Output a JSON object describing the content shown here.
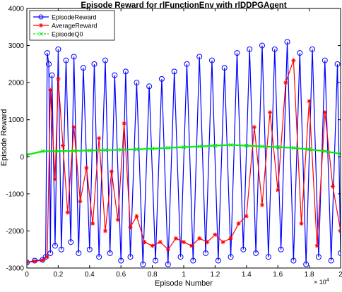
{
  "chart_data": {
    "type": "line",
    "title": "Episode Reward for rlFunctionEnv with rlDDPGAgent",
    "xlabel": "Episode Number",
    "ylabel": "Episode Reward",
    "xlim": [
      0,
      20000
    ],
    "ylim": [
      -3000,
      4000
    ],
    "x_ticks": [
      0,
      2000,
      4000,
      6000,
      8000,
      10000,
      12000,
      14000,
      16000,
      18000,
      20000
    ],
    "x_tick_labels": [
      "0",
      "0.2",
      "0.4",
      "0.6",
      "0.8",
      "1",
      "1.2",
      "1.4",
      "1.6",
      "1.8",
      "2"
    ],
    "x_exponent_label": "× 10",
    "x_exponent_power": "4",
    "y_ticks": [
      -3000,
      -2000,
      -1000,
      0,
      1000,
      2000,
      3000,
      4000
    ],
    "y_tick_labels": [
      "-3000",
      "-2000",
      "-1000",
      "0",
      "1000",
      "2000",
      "3000",
      "4000"
    ],
    "grid": false,
    "legend_position": "top-left",
    "series": [
      {
        "name": "EpisodeReward",
        "color": "#0000ff",
        "marker": "circle",
        "x": [
          0,
          500,
          1000,
          1200,
          1300,
          1400,
          1500,
          1600,
          1800,
          2000,
          2200,
          2500,
          2800,
          3000,
          3300,
          3600,
          4000,
          4300,
          4600,
          5000,
          5300,
          5600,
          6000,
          6300,
          6600,
          7000,
          7400,
          7800,
          8200,
          8600,
          9000,
          9400,
          9800,
          10200,
          10600,
          11000,
          11400,
          11800,
          12200,
          12600,
          13000,
          13400,
          13800,
          14200,
          14600,
          15000,
          15400,
          15800,
          16200,
          16600,
          17000,
          17400,
          17800,
          18200,
          18600,
          19000,
          19400,
          19800,
          20000
        ],
        "y": [
          -2850,
          -2800,
          -2780,
          -2700,
          2800,
          2500,
          -2600,
          2200,
          -2400,
          2900,
          -2500,
          2600,
          -2300,
          2700,
          -2600,
          2400,
          -2500,
          2500,
          -2700,
          2600,
          -2600,
          2200,
          -2800,
          2300,
          -2700,
          2000,
          -2900,
          1900,
          -2800,
          2100,
          -2900,
          2300,
          -2700,
          2500,
          -2800,
          2700,
          -2600,
          2600,
          -2800,
          2400,
          -2700,
          2800,
          -2500,
          2900,
          -2600,
          3000,
          -2700,
          2900,
          -2500,
          3100,
          -2800,
          2800,
          -2900,
          2900,
          -2700,
          2600,
          -2800,
          2500,
          -2600
        ]
      },
      {
        "name": "AverageReward",
        "color": "#ff0000",
        "marker": "asterisk",
        "x": [
          0,
          500,
          1000,
          1300,
          1500,
          1800,
          2000,
          2300,
          2600,
          3000,
          3400,
          3800,
          4200,
          4600,
          5000,
          5400,
          5800,
          6200,
          6600,
          7000,
          7500,
          8000,
          8500,
          9000,
          9500,
          10000,
          10500,
          11000,
          11500,
          12000,
          12500,
          13000,
          13500,
          14000,
          14500,
          15000,
          15500,
          16000,
          16500,
          17000,
          17500,
          18000,
          18500,
          19000,
          19500,
          20000
        ],
        "y": [
          -2850,
          -2820,
          -2790,
          -2700,
          1800,
          -600,
          2100,
          300,
          -1500,
          800,
          -1200,
          -300,
          -1800,
          500,
          -2000,
          -400,
          -1700,
          900,
          -1900,
          -1600,
          -2300,
          -2400,
          -2300,
          -2500,
          -2200,
          -2300,
          -2400,
          -2200,
          -2300,
          -2100,
          -2300,
          -2200,
          -1800,
          -1600,
          800,
          -1300,
          1200,
          -900,
          2000,
          2600,
          -1800,
          1500,
          -2400,
          1200,
          -800,
          -2000
        ]
      },
      {
        "name": "EpisodeQ0",
        "color": "#00ee00",
        "marker": "x",
        "x": [
          0,
          1000,
          2000,
          3000,
          4000,
          5000,
          6000,
          7000,
          8000,
          9000,
          10000,
          11000,
          12000,
          13000,
          14000,
          15000,
          16000,
          17000,
          18000,
          19000,
          20000
        ],
        "y": [
          50,
          150,
          150,
          160,
          170,
          180,
          190,
          200,
          220,
          240,
          260,
          280,
          300,
          320,
          300,
          280,
          260,
          240,
          200,
          150,
          80
        ]
      }
    ]
  }
}
